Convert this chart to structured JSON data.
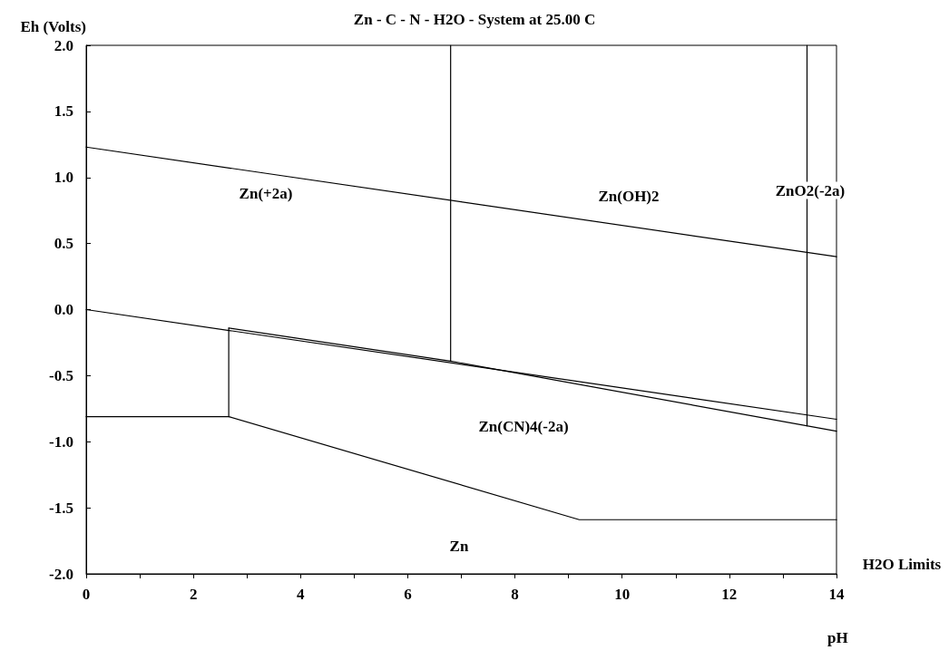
{
  "chart_data": {
    "type": "line",
    "title": "Zn - C - N - H2O - System at 25.00 C",
    "xlabel": "pH",
    "ylabel": "Eh (Volts)",
    "xlim": [
      0,
      14
    ],
    "ylim": [
      -2,
      2
    ],
    "xticks": [
      0,
      {
        "value": 1,
        "label": null
      },
      2,
      {
        "value": 3,
        "label": null
      },
      4,
      {
        "value": 5,
        "label": null
      },
      6,
      {
        "value": 7,
        "label": null
      },
      8,
      {
        "value": 9,
        "label": null
      },
      10,
      {
        "value": 11,
        "label": null
      },
      12,
      {
        "value": 13,
        "label": null
      },
      14
    ],
    "yticks": [
      {
        "value": -2,
        "label": "-2.0"
      },
      -1.5,
      {
        "value": -1,
        "label": "-1.0"
      },
      -0.5,
      {
        "value": 0,
        "label": "0.0"
      },
      0.5,
      {
        "value": 1,
        "label": "1.0"
      },
      1.5,
      {
        "value": 2,
        "label": "2.0"
      }
    ],
    "grid": false,
    "marker": "none",
    "line_style": "solid",
    "series": [
      {
        "color": "#000000",
        "x": [
          0,
          14
        ],
        "values": [
          1.23,
          0.4
        ]
      },
      {
        "color": "#000000",
        "x": [
          0,
          14
        ],
        "values": [
          0,
          -0.83
        ]
      },
      {
        "color": "#000000",
        "x": [
          6.8,
          6.8
        ],
        "values": [
          2,
          -0.39
        ]
      },
      {
        "color": "#000000",
        "x": [
          13.45,
          13.45
        ],
        "values": [
          2,
          -0.88
        ]
      },
      {
        "color": "#000000",
        "x": [
          2.66,
          6.8,
          14
        ],
        "values": [
          -0.14,
          -0.39,
          -0.92
        ]
      },
      {
        "color": "#000000",
        "x": [
          2.66,
          2.66
        ],
        "values": [
          -0.14,
          -0.81
        ]
      },
      {
        "color": "#000000",
        "x": [
          0,
          2.66,
          9.2,
          14
        ],
        "values": [
          -0.81,
          -0.81,
          -1.59,
          -1.59
        ]
      }
    ],
    "annotations": [
      "Zn(+2a)",
      "Zn(OH)2",
      "ZnO2(-2a)",
      "Zn(CN)4(-2a)",
      "Zn",
      "H2O Limits"
    ]
  }
}
